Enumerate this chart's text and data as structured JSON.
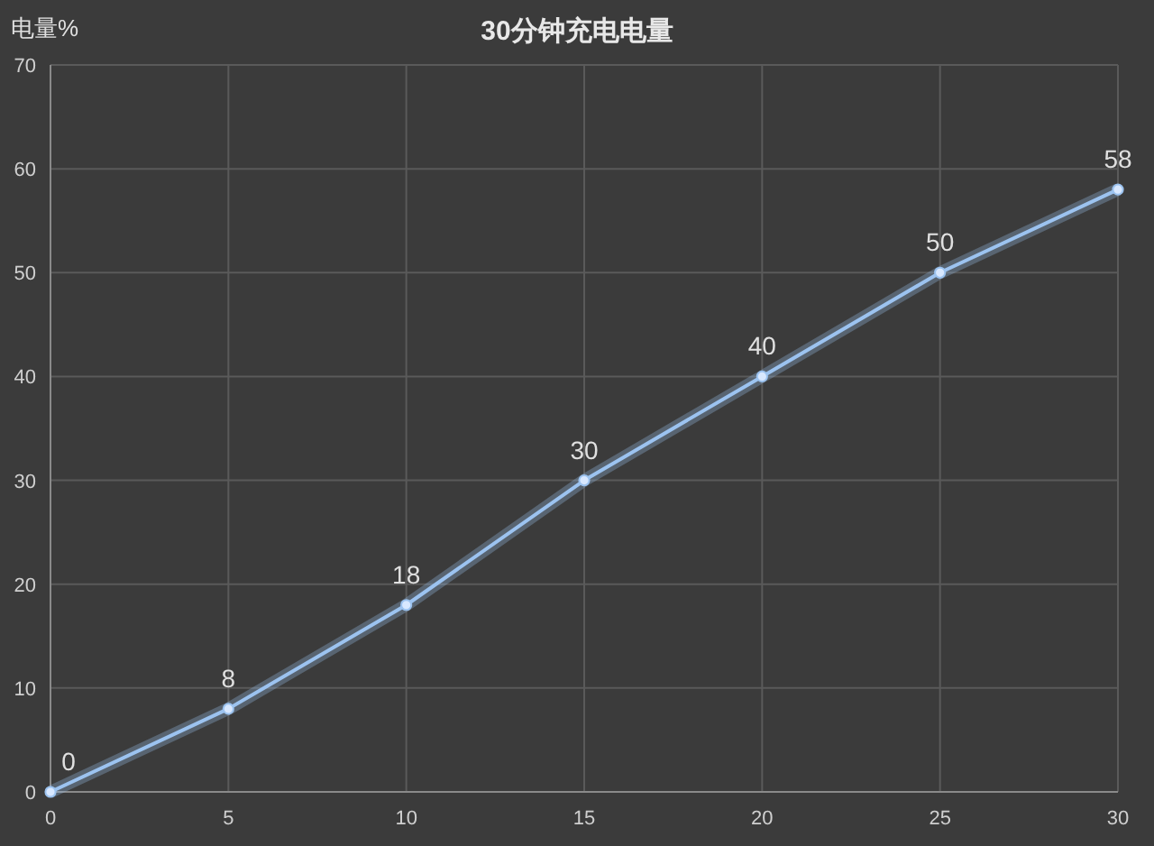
{
  "chart_data": {
    "type": "line",
    "title": "30分钟充电电量",
    "ylabel": "电量%",
    "x": [
      0,
      5,
      10,
      15,
      20,
      25,
      30
    ],
    "values": [
      0,
      8,
      18,
      30,
      40,
      50,
      58
    ],
    "color": "#9cc3f0",
    "xlim": [
      0,
      30
    ],
    "ylim": [
      0,
      70
    ],
    "xticks": [
      0,
      5,
      10,
      15,
      20,
      25,
      30
    ],
    "yticks": [
      0,
      10,
      20,
      30,
      40,
      50,
      60,
      70
    ],
    "grid": true,
    "marker": "circle",
    "line_style": "solid",
    "data_labels": true
  }
}
